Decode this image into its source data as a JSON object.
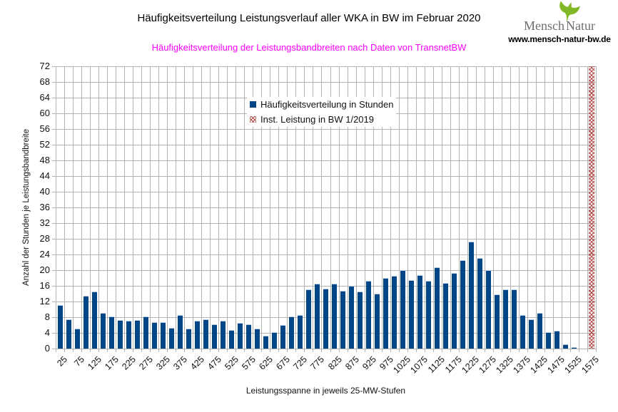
{
  "header": {
    "logo": {
      "brand_left": "Mensch",
      "brand_right": "Natur",
      "website": "www.mensch-natur-bw.de",
      "leaf_icon": "ginkgo-leaf",
      "leaf_color": "#82b827",
      "brand_text_color": "#6e6e6e"
    }
  },
  "chart_data": {
    "type": "bar",
    "title": "Häufigkeitsverteilung Leistungsverlauf aller WKA in BW im Februar 2020",
    "subtitle": "Häufigkeitsverteilung der Leistungsbandbreiten nach Daten von TransnetBW",
    "subtitle_color": "#ff00ff",
    "xlabel": "Leistungsspanne in jeweils 25-MW-Stufen",
    "ylabel": "Anzahl der Stunden je Leistungsbandbreite",
    "ylim": [
      0,
      72
    ],
    "ytick_step": 4,
    "yticks": [
      0,
      4,
      8,
      12,
      16,
      20,
      24,
      28,
      32,
      36,
      40,
      44,
      48,
      52,
      56,
      60,
      64,
      68,
      72
    ],
    "x_labels_every": 2,
    "grid": true,
    "grid_color": "#b3b3b3",
    "legend_position": "top-center-inside",
    "categories": [
      25,
      50,
      75,
      100,
      125,
      150,
      175,
      200,
      225,
      250,
      275,
      300,
      325,
      350,
      375,
      400,
      425,
      450,
      475,
      500,
      525,
      550,
      575,
      600,
      625,
      650,
      675,
      700,
      725,
      750,
      775,
      800,
      825,
      850,
      875,
      900,
      925,
      950,
      975,
      1000,
      1025,
      1050,
      1075,
      1100,
      1125,
      1150,
      1175,
      1200,
      1225,
      1250,
      1275,
      1300,
      1325,
      1350,
      1375,
      1400,
      1425,
      1450,
      1475,
      1500,
      1525,
      1550,
      1575
    ],
    "series": [
      {
        "name": "Häufigkeitsverteilung in Stunden",
        "color": "#004586",
        "values": [
          11,
          7.5,
          5,
          13.5,
          14.5,
          9,
          8.25,
          7.25,
          7,
          7.25,
          8.25,
          6.75,
          6.75,
          5.25,
          8.5,
          5,
          7,
          7.5,
          6.25,
          7,
          4.75,
          6.5,
          6.25,
          5,
          3.25,
          4.25,
          6,
          8.25,
          8.5,
          15,
          16.5,
          15.25,
          16.5,
          14.75,
          16,
          14.5,
          17.25,
          14,
          18,
          18.5,
          20,
          17.5,
          18.75,
          17.25,
          20.75,
          16.75,
          19.25,
          22.5,
          27.25,
          23,
          20,
          13.75,
          15,
          15,
          8.5,
          7.5,
          9,
          4.25,
          4.5,
          1,
          0.25,
          0,
          0
        ]
      },
      {
        "name": "Inst. Leistung in BW 1/2019",
        "color": "#b04a46",
        "style": "crosshatch",
        "marker_x": 1575,
        "drawn_top": 72
      }
    ]
  }
}
